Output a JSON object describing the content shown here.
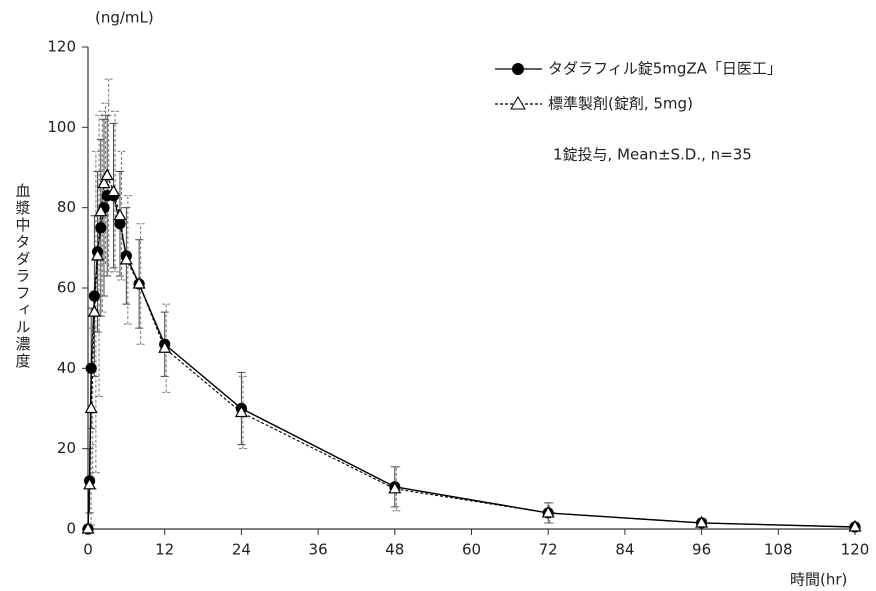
{
  "chart_data": {
    "type": "line",
    "y_unit": "(ng/mL)",
    "ylabel": "血漿中タダラフィル濃度",
    "xlabel": "時間(hr)",
    "annotation": "1錠投与, Mean±S.D., n=35",
    "x": [
      0,
      0.25,
      0.5,
      1,
      1.5,
      2,
      2.5,
      3,
      4,
      5,
      6,
      8,
      12,
      24,
      48,
      72,
      96,
      120
    ],
    "series": [
      {
        "name": "タダラフィル錠5mgZA「日医工」",
        "color": "#000000",
        "marker": "circle",
        "linestyle": "solid",
        "values": [
          0,
          12,
          40,
          58,
          69,
          75,
          80,
          83,
          83,
          76,
          68,
          61,
          46,
          30,
          10.5,
          4,
          1.5,
          0.5
        ],
        "errors": [
          0,
          8,
          15,
          20,
          20,
          22,
          22,
          20,
          18,
          13,
          12,
          11,
          8,
          9,
          5,
          2.5,
          1,
          0.5
        ]
      },
      {
        "name": "標準製剤(錠剤, 5mg)",
        "color": "#000000",
        "marker": "triangle",
        "linestyle": "dashed",
        "values": [
          0,
          11,
          30,
          54,
          68,
          79,
          86,
          88,
          84,
          78,
          67,
          61,
          45,
          29,
          10,
          4,
          1.5,
          0.5
        ],
        "errors": [
          0,
          10,
          20,
          40,
          35,
          25,
          20,
          24,
          20,
          16,
          16,
          15,
          11,
          9,
          5.5,
          2.5,
          1,
          0.5
        ]
      }
    ],
    "xlim": [
      0,
      120
    ],
    "xticks": [
      0,
      12,
      24,
      36,
      48,
      60,
      72,
      84,
      96,
      108,
      120
    ],
    "ylim": [
      0,
      120
    ],
    "yticks": [
      0,
      20,
      40,
      60,
      80,
      100,
      120
    ]
  }
}
